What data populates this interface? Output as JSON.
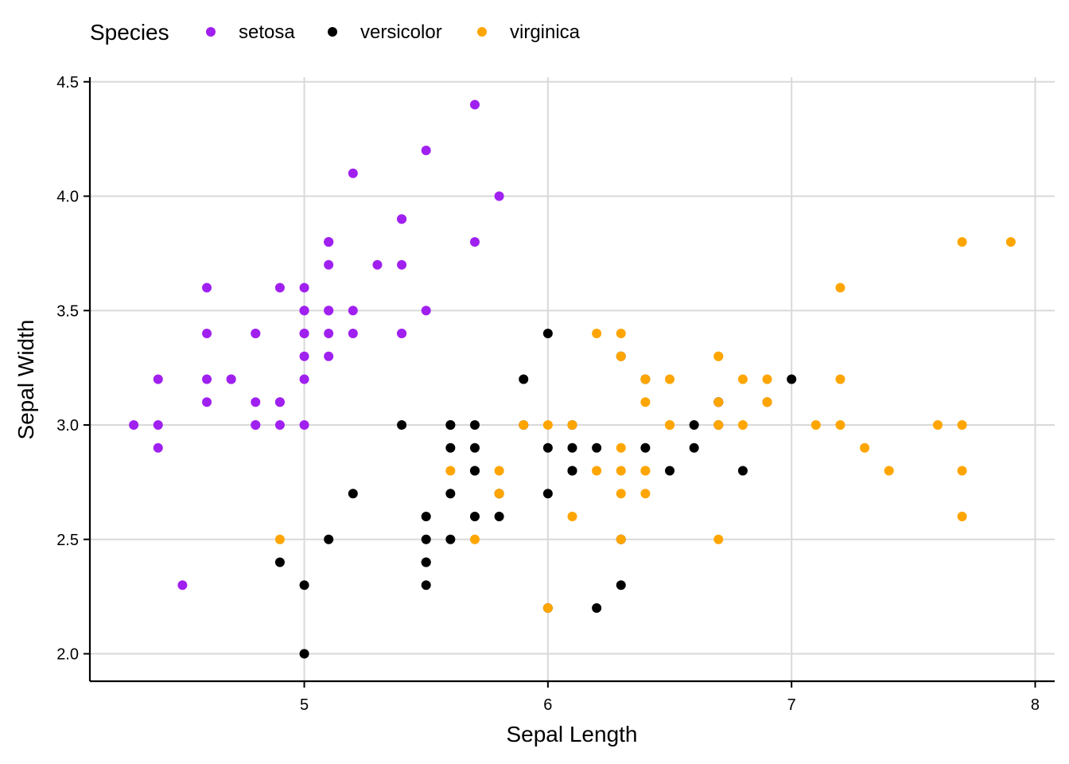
{
  "chart_data": {
    "type": "scatter",
    "xlabel": "Sepal Length",
    "ylabel": "Sepal Width",
    "xlim": [
      4.12,
      8.08
    ],
    "ylim": [
      1.88,
      4.52
    ],
    "xticks": [
      5,
      6,
      7,
      8
    ],
    "yticks": [
      2.0,
      2.5,
      3.0,
      3.5,
      4.0,
      4.5
    ],
    "xtick_labels": [
      "5",
      "6",
      "7",
      "8"
    ],
    "ytick_labels": [
      "2.0",
      "2.5",
      "3.0",
      "3.5",
      "4.0",
      "4.5"
    ],
    "grid": true,
    "legend": {
      "title": "Species",
      "placement": "top-left"
    },
    "series": [
      {
        "name": "setosa",
        "color": "#a020f0",
        "points": [
          [
            5.1,
            3.5
          ],
          [
            4.9,
            3.0
          ],
          [
            4.7,
            3.2
          ],
          [
            4.6,
            3.1
          ],
          [
            5.0,
            3.6
          ],
          [
            5.4,
            3.9
          ],
          [
            4.6,
            3.4
          ],
          [
            5.0,
            3.4
          ],
          [
            4.4,
            2.9
          ],
          [
            4.9,
            3.1
          ],
          [
            5.4,
            3.7
          ],
          [
            4.8,
            3.4
          ],
          [
            4.8,
            3.0
          ],
          [
            4.3,
            3.0
          ],
          [
            5.8,
            4.0
          ],
          [
            5.7,
            4.4
          ],
          [
            5.4,
            3.9
          ],
          [
            5.1,
            3.5
          ],
          [
            5.7,
            3.8
          ],
          [
            5.1,
            3.8
          ],
          [
            5.4,
            3.4
          ],
          [
            5.1,
            3.7
          ],
          [
            4.6,
            3.6
          ],
          [
            5.1,
            3.3
          ],
          [
            4.8,
            3.4
          ],
          [
            5.0,
            3.0
          ],
          [
            5.0,
            3.4
          ],
          [
            5.2,
            3.5
          ],
          [
            5.2,
            3.4
          ],
          [
            4.7,
            3.2
          ],
          [
            4.8,
            3.1
          ],
          [
            5.4,
            3.4
          ],
          [
            5.2,
            4.1
          ],
          [
            5.5,
            4.2
          ],
          [
            4.9,
            3.1
          ],
          [
            5.0,
            3.2
          ],
          [
            5.5,
            3.5
          ],
          [
            4.9,
            3.6
          ],
          [
            4.4,
            3.0
          ],
          [
            5.1,
            3.4
          ],
          [
            5.0,
            3.5
          ],
          [
            4.5,
            2.3
          ],
          [
            4.4,
            3.2
          ],
          [
            5.0,
            3.5
          ],
          [
            5.1,
            3.8
          ],
          [
            4.8,
            3.0
          ],
          [
            5.1,
            3.8
          ],
          [
            4.6,
            3.2
          ],
          [
            5.3,
            3.7
          ],
          [
            5.0,
            3.3
          ]
        ]
      },
      {
        "name": "versicolor",
        "color": "#000000",
        "points": [
          [
            7.0,
            3.2
          ],
          [
            6.4,
            3.2
          ],
          [
            6.9,
            3.1
          ],
          [
            5.5,
            2.3
          ],
          [
            6.5,
            2.8
          ],
          [
            5.7,
            2.8
          ],
          [
            6.3,
            3.3
          ],
          [
            4.9,
            2.4
          ],
          [
            6.6,
            2.9
          ],
          [
            5.2,
            2.7
          ],
          [
            5.0,
            2.0
          ],
          [
            5.9,
            3.0
          ],
          [
            6.0,
            2.2
          ],
          [
            6.1,
            2.9
          ],
          [
            5.6,
            2.9
          ],
          [
            6.7,
            3.1
          ],
          [
            5.6,
            3.0
          ],
          [
            5.8,
            2.7
          ],
          [
            6.2,
            2.2
          ],
          [
            5.6,
            2.5
          ],
          [
            5.9,
            3.2
          ],
          [
            6.1,
            2.8
          ],
          [
            6.3,
            2.5
          ],
          [
            6.1,
            2.8
          ],
          [
            6.4,
            2.9
          ],
          [
            6.6,
            3.0
          ],
          [
            6.8,
            2.8
          ],
          [
            6.7,
            3.0
          ],
          [
            6.0,
            2.9
          ],
          [
            5.7,
            2.6
          ],
          [
            5.5,
            2.4
          ],
          [
            5.5,
            2.4
          ],
          [
            5.8,
            2.7
          ],
          [
            6.0,
            2.7
          ],
          [
            5.4,
            3.0
          ],
          [
            6.0,
            3.4
          ],
          [
            6.7,
            3.1
          ],
          [
            6.3,
            2.3
          ],
          [
            5.6,
            3.0
          ],
          [
            5.5,
            2.5
          ],
          [
            5.5,
            2.6
          ],
          [
            6.1,
            3.0
          ],
          [
            5.8,
            2.6
          ],
          [
            5.0,
            2.3
          ],
          [
            5.6,
            2.7
          ],
          [
            5.7,
            3.0
          ],
          [
            5.7,
            2.9
          ],
          [
            6.2,
            2.9
          ],
          [
            5.1,
            2.5
          ],
          [
            5.7,
            2.8
          ]
        ]
      },
      {
        "name": "virginica",
        "color": "#ffa500",
        "points": [
          [
            6.3,
            3.3
          ],
          [
            5.8,
            2.7
          ],
          [
            7.1,
            3.0
          ],
          [
            6.3,
            2.9
          ],
          [
            6.5,
            3.0
          ],
          [
            7.6,
            3.0
          ],
          [
            4.9,
            2.5
          ],
          [
            7.3,
            2.9
          ],
          [
            6.7,
            2.5
          ],
          [
            7.2,
            3.6
          ],
          [
            6.5,
            3.2
          ],
          [
            6.4,
            2.7
          ],
          [
            6.8,
            3.0
          ],
          [
            5.7,
            2.5
          ],
          [
            5.8,
            2.8
          ],
          [
            6.4,
            3.2
          ],
          [
            6.5,
            3.0
          ],
          [
            7.7,
            3.8
          ],
          [
            7.7,
            2.6
          ],
          [
            6.0,
            2.2
          ],
          [
            6.9,
            3.2
          ],
          [
            5.6,
            2.8
          ],
          [
            7.7,
            2.8
          ],
          [
            6.3,
            2.7
          ],
          [
            6.7,
            3.3
          ],
          [
            7.2,
            3.2
          ],
          [
            6.2,
            2.8
          ],
          [
            6.1,
            3.0
          ],
          [
            6.4,
            2.8
          ],
          [
            7.2,
            3.0
          ],
          [
            7.4,
            2.8
          ],
          [
            7.9,
            3.8
          ],
          [
            6.4,
            2.8
          ],
          [
            6.3,
            2.8
          ],
          [
            6.1,
            2.6
          ],
          [
            7.7,
            3.0
          ],
          [
            6.3,
            3.4
          ],
          [
            6.4,
            3.1
          ],
          [
            6.0,
            3.0
          ],
          [
            6.9,
            3.1
          ],
          [
            6.7,
            3.1
          ],
          [
            6.9,
            3.1
          ],
          [
            5.8,
            2.7
          ],
          [
            6.8,
            3.2
          ],
          [
            6.7,
            3.3
          ],
          [
            6.7,
            3.0
          ],
          [
            6.3,
            2.5
          ],
          [
            6.5,
            3.0
          ],
          [
            6.2,
            3.4
          ],
          [
            5.9,
            3.0
          ]
        ]
      }
    ]
  }
}
